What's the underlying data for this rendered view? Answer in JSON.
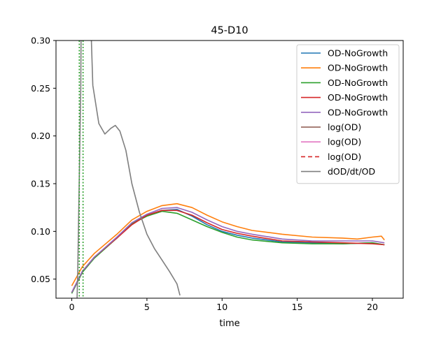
{
  "chart_data": {
    "type": "line",
    "title": "45-D10",
    "xlabel": "time",
    "ylabel": "",
    "xlim": [
      -1.05,
      22.05
    ],
    "ylim": [
      0.03,
      0.3
    ],
    "xticks": [
      0,
      5,
      10,
      15,
      20
    ],
    "yticks": [
      0.05,
      0.1,
      0.15,
      0.2,
      0.25,
      0.3
    ],
    "ytick_labels": [
      "0.05",
      "0.10",
      "0.15",
      "0.20",
      "0.25",
      "0.30"
    ],
    "legend_position": "top-right",
    "series": [
      {
        "name": "OD-NoGrowth",
        "color": "#1f77b4",
        "dash": "",
        "x": [
          0,
          0.7,
          1.5,
          3,
          4,
          5,
          6,
          7,
          8,
          9,
          10,
          11,
          12,
          14,
          16,
          18,
          20,
          20.8
        ],
        "y": [
          0.036,
          0.058,
          0.073,
          0.093,
          0.108,
          0.117,
          0.122,
          0.123,
          0.116,
          0.107,
          0.1,
          0.096,
          0.093,
          0.089,
          0.088,
          0.087,
          0.088,
          0.086
        ]
      },
      {
        "name": "OD-NoGrowth",
        "color": "#ff7f0e",
        "dash": "",
        "x": [
          0,
          0.7,
          1.5,
          3,
          4,
          5,
          6,
          7,
          8,
          9,
          10,
          11,
          12,
          14,
          16,
          18,
          19,
          20,
          20.6,
          20.8
        ],
        "y": [
          0.043,
          0.063,
          0.077,
          0.097,
          0.112,
          0.121,
          0.127,
          0.129,
          0.125,
          0.117,
          0.11,
          0.105,
          0.101,
          0.097,
          0.094,
          0.093,
          0.092,
          0.094,
          0.095,
          0.091
        ]
      },
      {
        "name": "OD-NoGrowth",
        "color": "#2ca02c",
        "dash": "",
        "x": [
          0,
          0.7,
          1.5,
          3,
          4,
          5,
          6,
          7,
          8,
          9,
          10,
          11,
          12,
          14,
          16,
          18,
          20,
          20.8
        ],
        "y": [
          0.035,
          0.057,
          0.072,
          0.093,
          0.108,
          0.116,
          0.121,
          0.119,
          0.112,
          0.105,
          0.099,
          0.094,
          0.091,
          0.088,
          0.087,
          0.087,
          0.088,
          0.086
        ]
      },
      {
        "name": "OD-NoGrowth",
        "color": "#d62728",
        "dash": "",
        "x": [
          0,
          0.7,
          1.5,
          3,
          4,
          5,
          6,
          7,
          8,
          9,
          10,
          11,
          12,
          14,
          16,
          18,
          20,
          20.8
        ],
        "y": [
          0.036,
          0.058,
          0.073,
          0.093,
          0.107,
          0.117,
          0.122,
          0.122,
          0.117,
          0.109,
          0.102,
          0.098,
          0.095,
          0.09,
          0.089,
          0.088,
          0.087,
          0.086
        ]
      },
      {
        "name": "OD-NoGrowth",
        "color": "#9467bd",
        "dash": "",
        "x": [
          0,
          0.7,
          1.5,
          3,
          4,
          5,
          6,
          7,
          8,
          9,
          10,
          11,
          12,
          14,
          16,
          18,
          20,
          20.8
        ],
        "y": [
          0.036,
          0.058,
          0.073,
          0.094,
          0.109,
          0.118,
          0.124,
          0.125,
          0.12,
          0.112,
          0.105,
          0.1,
          0.097,
          0.092,
          0.09,
          0.09,
          0.09,
          0.088
        ]
      },
      {
        "name": "log(OD)",
        "color": "#8c564b",
        "dash": "",
        "x": [],
        "y": []
      },
      {
        "name": "log(OD)",
        "color": "#e377c2",
        "dash": "",
        "x": [],
        "y": []
      },
      {
        "name": "log(OD)",
        "color": "#d62728",
        "dash": "6,4",
        "x": [],
        "y": []
      },
      {
        "name": "dOD/dt/OD",
        "color": "#7f7f7f",
        "dash": "",
        "x": [
          0.35,
          0.4,
          0.6,
          0.65,
          1.1,
          1.4,
          1.8,
          2.2,
          2.6,
          2.9,
          3.2,
          3.6,
          4.0,
          4.5,
          5.0,
          5.5,
          6.0,
          6.5,
          7.0,
          7.2
        ],
        "y": [
          0.03,
          0.06,
          0.25,
          0.4,
          0.4,
          0.253,
          0.213,
          0.202,
          0.208,
          0.211,
          0.205,
          0.185,
          0.15,
          0.12,
          0.097,
          0.082,
          0.07,
          0.058,
          0.045,
          0.033
        ]
      }
    ],
    "vlines": [
      {
        "x": 0.5,
        "color": "#2ca02c",
        "dash": "2,2.5"
      },
      {
        "x": 0.75,
        "color": "#2ca02c",
        "dash": "2,2.5"
      }
    ]
  }
}
